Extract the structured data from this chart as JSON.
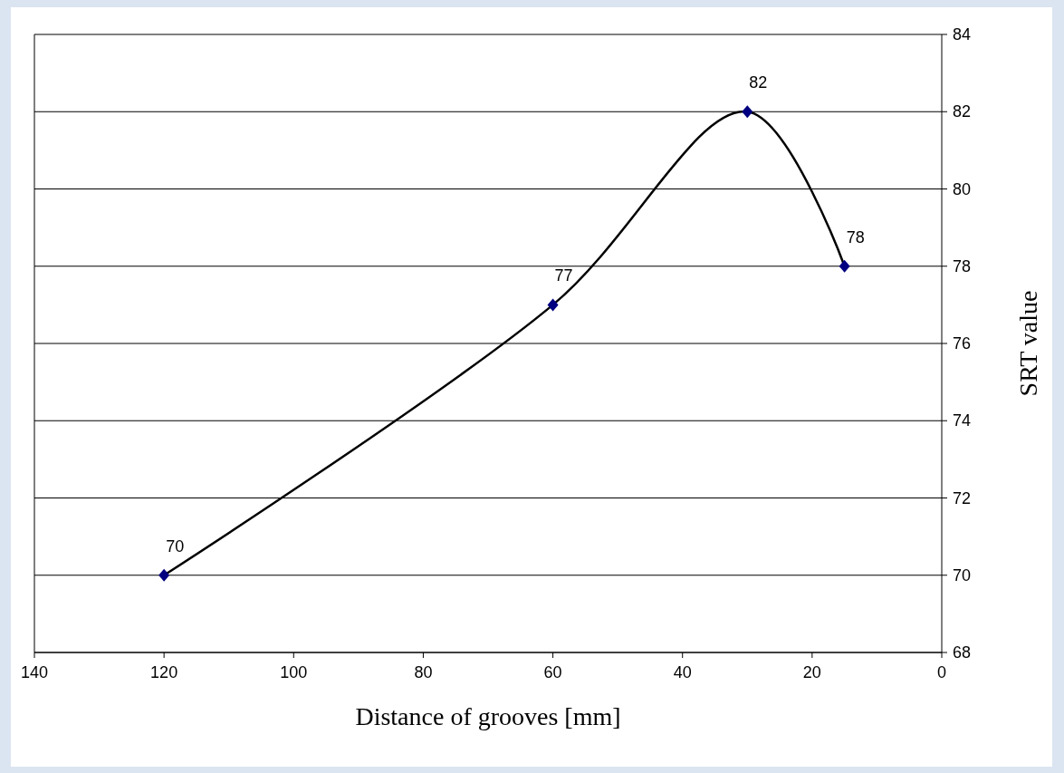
{
  "chart_data": {
    "type": "line",
    "xlabel": "Distance of grooves [mm]",
    "ylabel": "SRT value",
    "x": [
      120,
      60,
      30,
      15
    ],
    "series": [
      {
        "color": "#000000",
        "values": [
          70,
          77,
          82,
          78
        ]
      }
    ],
    "xlim": [
      140,
      0
    ],
    "xticks": [
      140,
      120,
      100,
      80,
      60,
      40,
      20,
      0
    ],
    "ylim": [
      68,
      84
    ],
    "yticks": [
      68,
      70,
      72,
      74,
      76,
      78,
      80,
      82,
      84
    ],
    "grid": "y",
    "marker": "diamond",
    "line_style": "solid",
    "data_labels": true
  }
}
